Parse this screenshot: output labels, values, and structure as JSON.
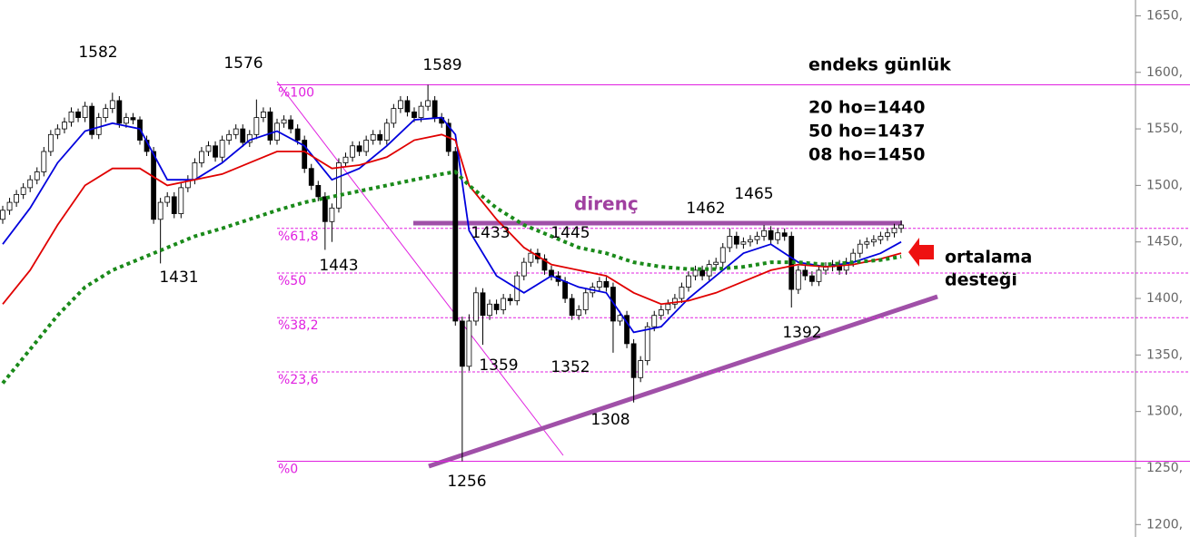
{
  "chart_data": {
    "type": "candlestick",
    "ylim": [
      1189,
      1664
    ],
    "yticks": [
      {
        "value": 1200,
        "label": "1200,"
      },
      {
        "value": 1250,
        "label": "1250,"
      },
      {
        "value": 1300,
        "label": "1300,"
      },
      {
        "value": 1350,
        "label": "1350,"
      },
      {
        "value": 1400,
        "label": "1400,"
      },
      {
        "value": 1450,
        "label": "1450,"
      },
      {
        "value": 1500,
        "label": "1500,"
      },
      {
        "value": 1550,
        "label": "1550,"
      },
      {
        "value": 1600,
        "label": "1600,"
      },
      {
        "value": 1650,
        "label": "1650,"
      }
    ],
    "ohlc": [
      [
        1470,
        1482,
        1466,
        1478
      ],
      [
        1478,
        1489,
        1474,
        1485
      ],
      [
        1485,
        1496,
        1481,
        1492
      ],
      [
        1492,
        1502,
        1488,
        1498
      ],
      [
        1498,
        1509,
        1494,
        1505
      ],
      [
        1505,
        1516,
        1501,
        1512
      ],
      [
        1512,
        1534,
        1508,
        1530
      ],
      [
        1530,
        1549,
        1526,
        1545
      ],
      [
        1545,
        1554,
        1541,
        1550
      ],
      [
        1550,
        1560,
        1546,
        1556
      ],
      [
        1556,
        1569,
        1552,
        1565
      ],
      [
        1565,
        1568,
        1556,
        1560
      ],
      [
        1560,
        1574,
        1556,
        1570
      ],
      [
        1570,
        1573,
        1541,
        1545
      ],
      [
        1545,
        1564,
        1541,
        1560
      ],
      [
        1560,
        1572,
        1556,
        1568
      ],
      [
        1568,
        1582,
        1564,
        1575
      ],
      [
        1575,
        1579,
        1551,
        1555
      ],
      [
        1555,
        1564,
        1551,
        1560
      ],
      [
        1560,
        1564,
        1554,
        1558
      ],
      [
        1558,
        1561,
        1536,
        1540
      ],
      [
        1540,
        1544,
        1526,
        1530
      ],
      [
        1530,
        1534,
        1466,
        1470
      ],
      [
        1470,
        1489,
        1431,
        1485
      ],
      [
        1485,
        1494,
        1481,
        1490
      ],
      [
        1490,
        1494,
        1471,
        1475
      ],
      [
        1475,
        1502,
        1471,
        1498
      ],
      [
        1498,
        1509,
        1494,
        1505
      ],
      [
        1505,
        1524,
        1501,
        1520
      ],
      [
        1520,
        1534,
        1516,
        1530
      ],
      [
        1530,
        1539,
        1526,
        1535
      ],
      [
        1535,
        1539,
        1521,
        1525
      ],
      [
        1525,
        1544,
        1521,
        1540
      ],
      [
        1540,
        1549,
        1536,
        1545
      ],
      [
        1545,
        1554,
        1541,
        1550
      ],
      [
        1550,
        1554,
        1534,
        1538
      ],
      [
        1538,
        1549,
        1534,
        1545
      ],
      [
        1545,
        1576,
        1541,
        1560
      ],
      [
        1560,
        1569,
        1556,
        1565
      ],
      [
        1565,
        1569,
        1536,
        1540
      ],
      [
        1540,
        1559,
        1536,
        1555
      ],
      [
        1555,
        1562,
        1551,
        1558
      ],
      [
        1558,
        1562,
        1546,
        1550
      ],
      [
        1550,
        1554,
        1536,
        1540
      ],
      [
        1540,
        1544,
        1511,
        1515
      ],
      [
        1515,
        1519,
        1496,
        1500
      ],
      [
        1500,
        1504,
        1486,
        1490
      ],
      [
        1490,
        1494,
        1443,
        1468
      ],
      [
        1468,
        1484,
        1450,
        1480
      ],
      [
        1480,
        1524,
        1476,
        1520
      ],
      [
        1520,
        1529,
        1516,
        1525
      ],
      [
        1525,
        1539,
        1521,
        1535
      ],
      [
        1535,
        1539,
        1526,
        1530
      ],
      [
        1530,
        1544,
        1526,
        1540
      ],
      [
        1540,
        1549,
        1536,
        1545
      ],
      [
        1545,
        1549,
        1536,
        1540
      ],
      [
        1540,
        1559,
        1536,
        1555
      ],
      [
        1555,
        1572,
        1551,
        1568
      ],
      [
        1568,
        1579,
        1564,
        1575
      ],
      [
        1575,
        1579,
        1561,
        1565
      ],
      [
        1565,
        1569,
        1556,
        1560
      ],
      [
        1560,
        1574,
        1556,
        1570
      ],
      [
        1570,
        1589,
        1566,
        1575
      ],
      [
        1575,
        1579,
        1556,
        1560
      ],
      [
        1560,
        1564,
        1551,
        1555
      ],
      [
        1555,
        1559,
        1526,
        1530
      ],
      [
        1530,
        1534,
        1376,
        1380
      ],
      [
        1380,
        1384,
        1256,
        1340
      ],
      [
        1340,
        1386,
        1336,
        1380
      ],
      [
        1380,
        1410,
        1376,
        1405
      ],
      [
        1405,
        1409,
        1359,
        1385
      ],
      [
        1385,
        1399,
        1381,
        1395
      ],
      [
        1395,
        1399,
        1386,
        1390
      ],
      [
        1390,
        1404,
        1386,
        1400
      ],
      [
        1400,
        1404,
        1394,
        1398
      ],
      [
        1398,
        1424,
        1394,
        1420
      ],
      [
        1420,
        1436,
        1416,
        1432
      ],
      [
        1432,
        1444,
        1428,
        1440
      ],
      [
        1440,
        1444,
        1431,
        1435
      ],
      [
        1435,
        1439,
        1421,
        1425
      ],
      [
        1425,
        1429,
        1416,
        1420
      ],
      [
        1420,
        1424,
        1411,
        1415
      ],
      [
        1415,
        1419,
        1396,
        1400
      ],
      [
        1400,
        1404,
        1381,
        1385
      ],
      [
        1385,
        1394,
        1381,
        1390
      ],
      [
        1390,
        1409,
        1386,
        1405
      ],
      [
        1405,
        1414,
        1401,
        1410
      ],
      [
        1410,
        1419,
        1406,
        1415
      ],
      [
        1415,
        1419,
        1406,
        1410
      ],
      [
        1410,
        1414,
        1352,
        1380
      ],
      [
        1380,
        1389,
        1376,
        1385
      ],
      [
        1385,
        1389,
        1356,
        1360
      ],
      [
        1360,
        1364,
        1308,
        1330
      ],
      [
        1330,
        1349,
        1326,
        1345
      ],
      [
        1345,
        1379,
        1341,
        1375
      ],
      [
        1375,
        1389,
        1371,
        1385
      ],
      [
        1385,
        1394,
        1381,
        1390
      ],
      [
        1390,
        1399,
        1386,
        1395
      ],
      [
        1395,
        1404,
        1391,
        1400
      ],
      [
        1400,
        1414,
        1396,
        1410
      ],
      [
        1410,
        1424,
        1406,
        1420
      ],
      [
        1420,
        1429,
        1416,
        1425
      ],
      [
        1425,
        1429,
        1416,
        1420
      ],
      [
        1420,
        1434,
        1416,
        1430
      ],
      [
        1430,
        1436,
        1426,
        1432
      ],
      [
        1432,
        1449,
        1428,
        1445
      ],
      [
        1445,
        1462,
        1441,
        1455
      ],
      [
        1455,
        1459,
        1444,
        1448
      ],
      [
        1448,
        1454,
        1444,
        1450
      ],
      [
        1450,
        1456,
        1446,
        1452
      ],
      [
        1452,
        1459,
        1448,
        1455
      ],
      [
        1455,
        1465,
        1451,
        1460
      ],
      [
        1460,
        1464,
        1448,
        1452
      ],
      [
        1452,
        1462,
        1448,
        1458
      ],
      [
        1458,
        1462,
        1451,
        1455
      ],
      [
        1455,
        1459,
        1392,
        1408
      ],
      [
        1408,
        1429,
        1404,
        1425
      ],
      [
        1425,
        1429,
        1416,
        1420
      ],
      [
        1420,
        1424,
        1411,
        1415
      ],
      [
        1415,
        1429,
        1411,
        1425
      ],
      [
        1425,
        1432,
        1421,
        1428
      ],
      [
        1428,
        1434,
        1424,
        1430
      ],
      [
        1430,
        1434,
        1421,
        1425
      ],
      [
        1425,
        1436,
        1421,
        1432
      ],
      [
        1432,
        1444,
        1428,
        1440
      ],
      [
        1440,
        1452,
        1436,
        1448
      ],
      [
        1448,
        1454,
        1444,
        1450
      ],
      [
        1450,
        1456,
        1446,
        1452
      ],
      [
        1452,
        1459,
        1448,
        1455
      ],
      [
        1455,
        1462,
        1451,
        1458
      ],
      [
        1458,
        1466,
        1454,
        1462
      ],
      [
        1462,
        1469,
        1458,
        1465
      ]
    ],
    "series": [
      {
        "color": "#0000dd",
        "style": "solid",
        "x": [
          0,
          4,
          8,
          12,
          16,
          20,
          24,
          28,
          32,
          36,
          40,
          44,
          48,
          52,
          56,
          60,
          64,
          66,
          68,
          72,
          76,
          80,
          84,
          88,
          92,
          96,
          100,
          104,
          108,
          112,
          116,
          120,
          124,
          128,
          131
        ],
        "values": [
          1448,
          1480,
          1520,
          1548,
          1555,
          1550,
          1505,
          1505,
          1520,
          1540,
          1548,
          1535,
          1505,
          1515,
          1535,
          1558,
          1560,
          1545,
          1460,
          1420,
          1405,
          1420,
          1410,
          1405,
          1370,
          1375,
          1400,
          1420,
          1440,
          1448,
          1432,
          1428,
          1432,
          1440,
          1450
        ]
      },
      {
        "color": "#e00000",
        "style": "solid",
        "x": [
          0,
          4,
          8,
          12,
          16,
          20,
          24,
          28,
          32,
          36,
          40,
          44,
          48,
          52,
          56,
          60,
          64,
          66,
          68,
          72,
          76,
          80,
          84,
          88,
          92,
          96,
          100,
          104,
          108,
          112,
          116,
          120,
          124,
          128,
          131
        ],
        "values": [
          1395,
          1425,
          1465,
          1500,
          1515,
          1515,
          1500,
          1505,
          1510,
          1520,
          1530,
          1530,
          1515,
          1518,
          1525,
          1540,
          1545,
          1540,
          1500,
          1470,
          1445,
          1430,
          1425,
          1420,
          1405,
          1395,
          1398,
          1405,
          1415,
          1425,
          1430,
          1428,
          1430,
          1435,
          1440
        ]
      },
      {
        "color": "#1a8a1a",
        "style": "dotted",
        "x": [
          0,
          4,
          8,
          12,
          16,
          20,
          24,
          28,
          32,
          36,
          40,
          44,
          48,
          52,
          56,
          60,
          64,
          66,
          68,
          72,
          76,
          80,
          84,
          88,
          92,
          96,
          100,
          104,
          108,
          112,
          116,
          120,
          124,
          128,
          131
        ],
        "values": [
          1325,
          1355,
          1385,
          1410,
          1425,
          1435,
          1445,
          1455,
          1462,
          1470,
          1478,
          1485,
          1490,
          1495,
          1500,
          1505,
          1510,
          1512,
          1500,
          1480,
          1465,
          1455,
          1445,
          1440,
          1432,
          1428,
          1426,
          1426,
          1428,
          1432,
          1432,
          1430,
          1432,
          1434,
          1437
        ]
      }
    ],
    "fibonacci": [
      {
        "label": "%100",
        "value": 1589
      },
      {
        "label": "%61,8",
        "value": 1462
      },
      {
        "label": "%50",
        "value": 1422.5
      },
      {
        "label": "%38,2",
        "value": 1383
      },
      {
        "label": "%23,6",
        "value": 1335
      },
      {
        "label": "%0",
        "value": 1256
      }
    ],
    "price_labels": [
      "1582",
      "1576",
      "1589",
      "1431",
      "1443",
      "1433",
      "1445",
      "1359",
      "1352",
      "1308",
      "1256",
      "1462",
      "1465",
      "1392"
    ],
    "resistance_label": "direnç",
    "info_title": "endeks günlük",
    "info_lines": [
      "20 ho=1440",
      "50 ho=1437",
      "08 ho=1450"
    ],
    "support_label": [
      "ortalama",
      "desteği"
    ]
  }
}
